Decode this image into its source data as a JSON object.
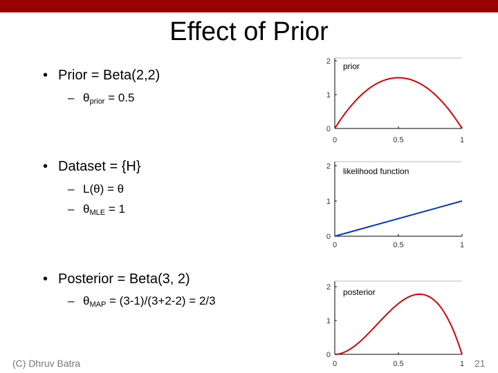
{
  "slide": {
    "title": "Effect of Prior",
    "footer_left": "(C) Dhruv Batra",
    "page_number": "21"
  },
  "bullets": {
    "prior": {
      "label": "Prior = Beta(2,2)",
      "theta_symbol": "θ",
      "theta_sub": "prior",
      "theta_rest": " = 0.5"
    },
    "dataset": {
      "label": "Dataset = {H}",
      "likelihood": "L(θ) = θ",
      "theta_symbol": "θ",
      "theta_sub": "MLE",
      "theta_rest": " = 1"
    },
    "posterior": {
      "label": "Posterior = Beta(3, 2)",
      "theta_symbol": "θ",
      "theta_sub": "MAP",
      "theta_rest": " = (3-1)/(3+2-2) = 2/3"
    }
  },
  "colors": {
    "accent_bar": "#990000",
    "prior_curve": "#d40000",
    "likelihood_line": "#0033cc",
    "posterior_curve": "#d40000"
  },
  "chart_data": [
    {
      "type": "line",
      "annotation": "prior",
      "xlim": [
        0,
        1
      ],
      "ylim": [
        0,
        2
      ],
      "x_ticks": [
        "0",
        "0.5",
        "1"
      ],
      "y_ticks": [
        "0",
        "1",
        "2"
      ],
      "x": [
        0,
        0.1,
        0.2,
        0.3,
        0.4,
        0.5,
        0.6,
        0.7,
        0.8,
        0.9,
        1
      ],
      "series": [
        {
          "values": [
            0,
            0.54,
            0.96,
            1.26,
            1.44,
            1.5,
            1.44,
            1.26,
            0.96,
            0.54,
            0
          ]
        }
      ]
    },
    {
      "type": "line",
      "annotation": "likelihood function",
      "xlim": [
        0,
        1
      ],
      "ylim": [
        0,
        2
      ],
      "x_ticks": [
        "0",
        "0.5",
        "1"
      ],
      "y_ticks": [
        "0",
        "1",
        "2"
      ],
      "x": [
        0,
        1
      ],
      "series": [
        {
          "values": [
            0,
            1
          ]
        }
      ]
    },
    {
      "type": "line",
      "annotation": "posterior",
      "xlim": [
        0,
        1
      ],
      "ylim": [
        0,
        2
      ],
      "x_ticks": [
        "0",
        "0.5",
        "1"
      ],
      "y_ticks": [
        "0",
        "1",
        "2"
      ],
      "x": [
        0,
        0.1,
        0.2,
        0.3,
        0.4,
        0.5,
        0.6,
        0.7,
        0.8,
        0.9,
        1
      ],
      "series": [
        {
          "values": [
            0,
            0.108,
            0.384,
            0.756,
            1.152,
            1.5,
            1.728,
            1.764,
            1.536,
            0.972,
            0
          ]
        }
      ]
    }
  ]
}
